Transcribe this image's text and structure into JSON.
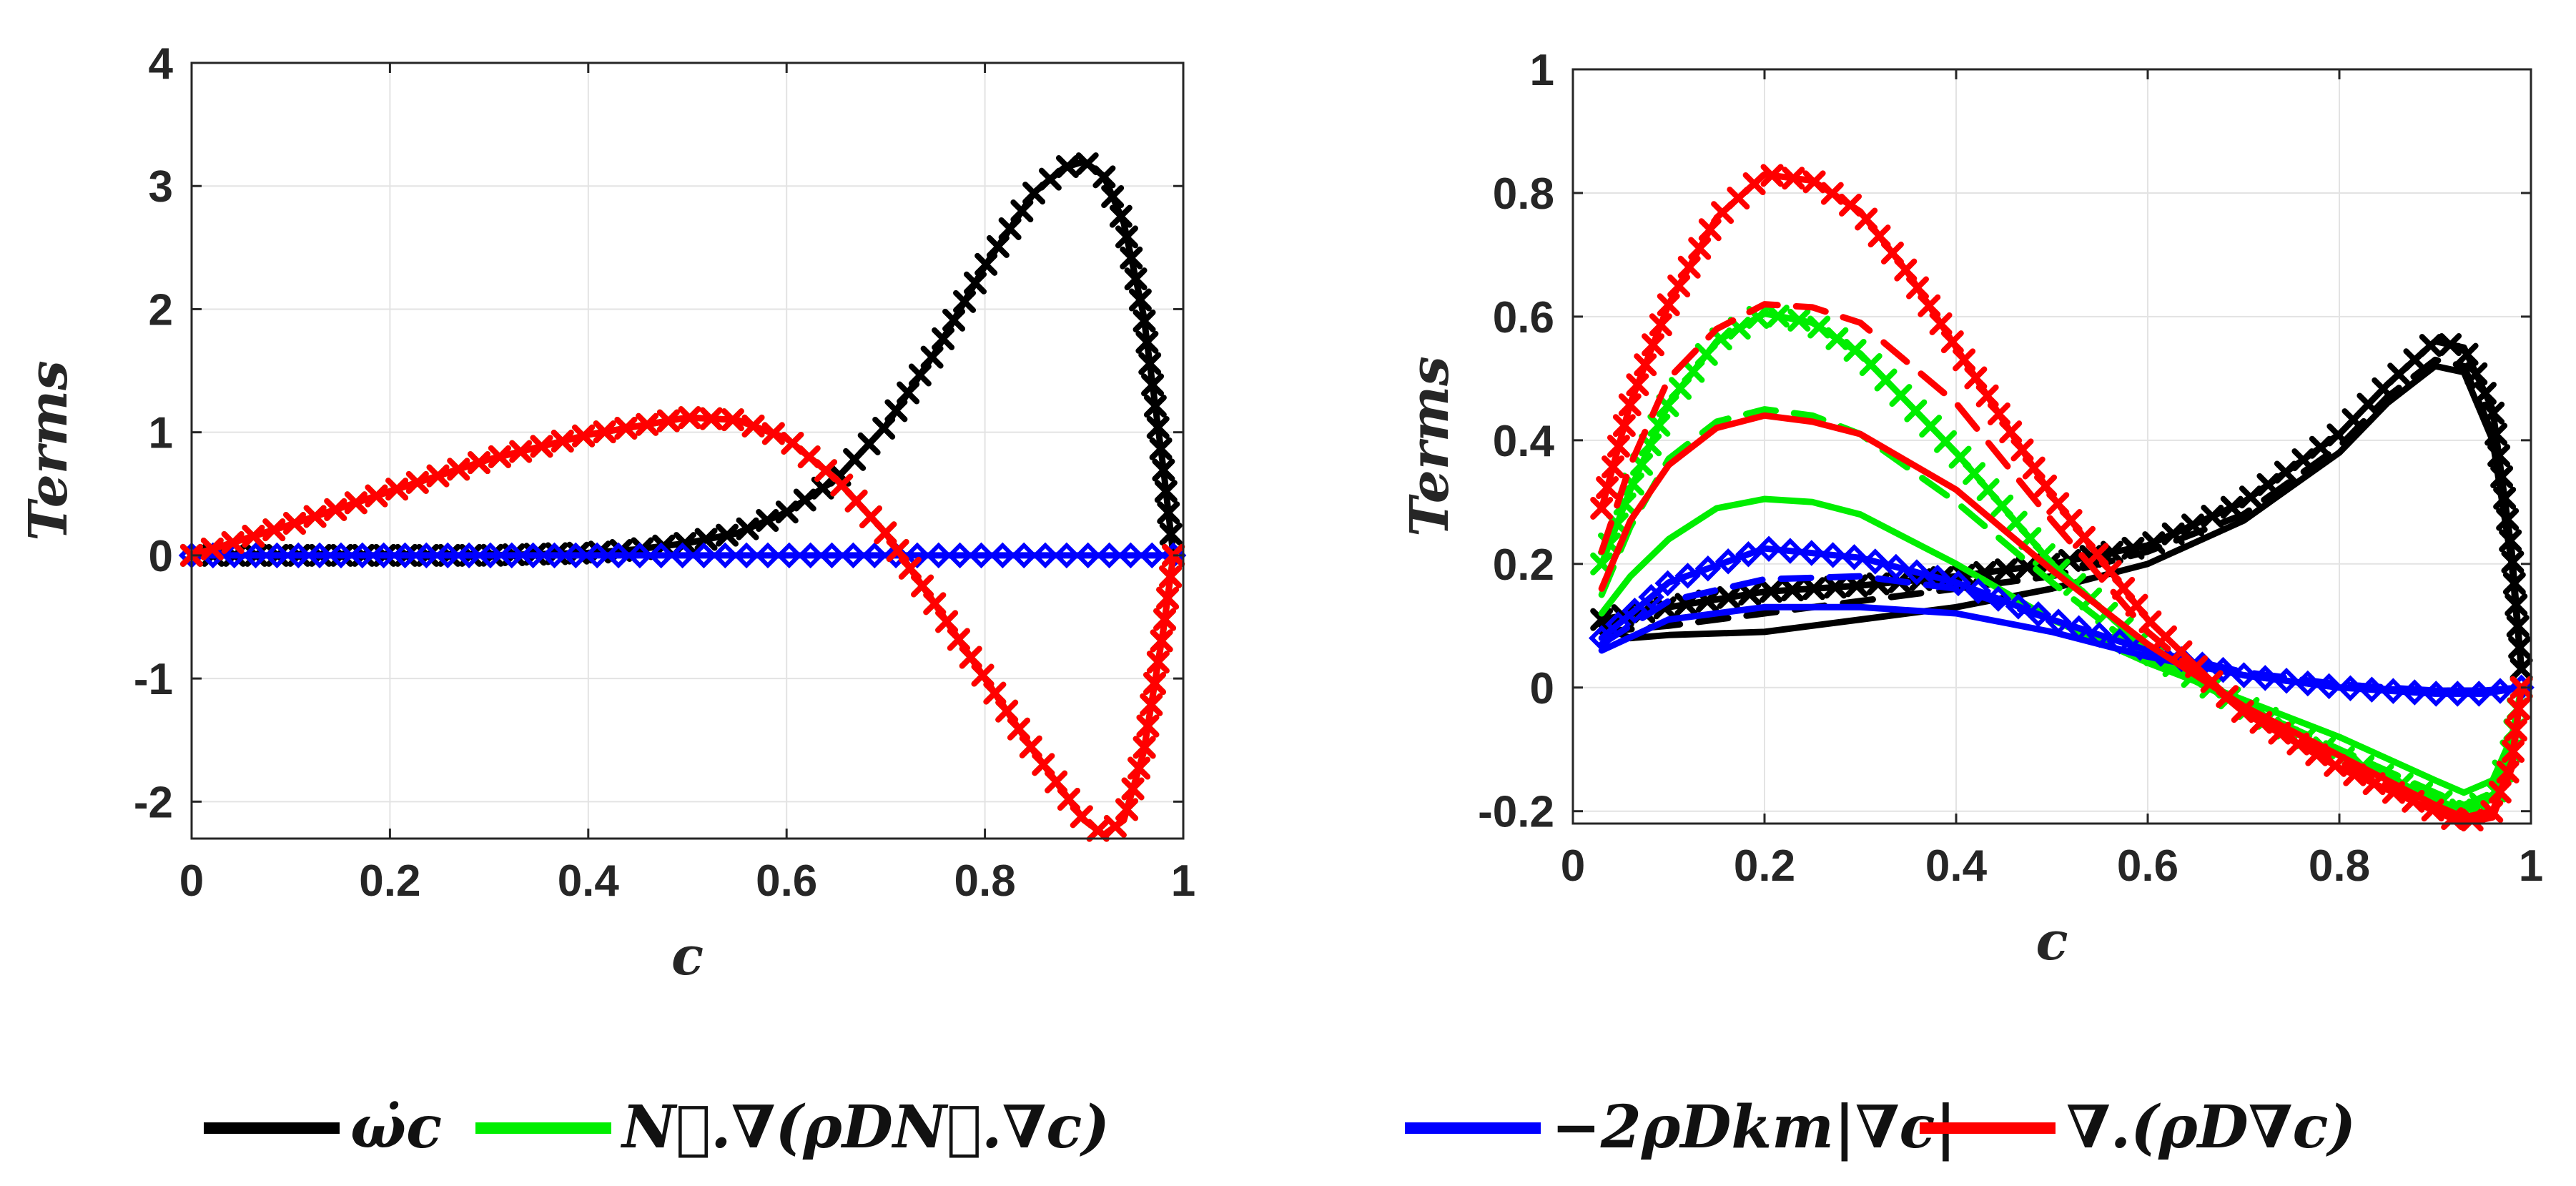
{
  "legend": [
    {
      "key": "black",
      "label": "ω̇c",
      "color": "#000000"
    },
    {
      "key": "green",
      "label": "N⃗.∇(ρDN⃗.∇c)",
      "color": "#00ee00"
    },
    {
      "key": "blue",
      "label": "−2ρDkm|∇c|",
      "color": "#0000ff"
    },
    {
      "key": "red",
      "label": "∇.(ρD∇c)",
      "color": "#ff0000"
    }
  ],
  "chart_data": [
    {
      "type": "line",
      "panel": "left",
      "xlabel": "c",
      "ylabel": "Terms",
      "xlim": [
        0,
        1
      ],
      "ylim": [
        -2.3,
        4
      ],
      "xticks": [
        0,
        0.2,
        0.4,
        0.6,
        0.8,
        1
      ],
      "xtick_labels": [
        "0",
        "0.2",
        "0.4",
        "0.6",
        "0.8",
        "1"
      ],
      "yticks": [
        -2,
        -1,
        0,
        1,
        2,
        3,
        4
      ],
      "ytick_labels": [
        "-2",
        "-1",
        "0",
        "1",
        "2",
        "3",
        "4"
      ],
      "grid": true,
      "series": [
        {
          "name": "ω̇c",
          "color": "#000000",
          "style": "solid",
          "marker": "x",
          "x": [
            0,
            0.1,
            0.2,
            0.3,
            0.4,
            0.45,
            0.5,
            0.55,
            0.6,
            0.65,
            0.7,
            0.75,
            0.8,
            0.85,
            0.88,
            0.9,
            0.92,
            0.94,
            0.96,
            0.98,
            0.99
          ],
          "y": [
            0,
            0,
            0,
            0,
            0.02,
            0.05,
            0.1,
            0.18,
            0.35,
            0.62,
            1.05,
            1.65,
            2.35,
            2.95,
            3.15,
            3.2,
            3.08,
            2.7,
            1.95,
            0.7,
            0
          ]
        },
        {
          "name": "N⃗.∇(ρDN⃗.∇c)",
          "color": "#00ee00",
          "style": "solid",
          "marker": "x",
          "x": [
            0,
            0.1,
            0.2,
            0.3,
            0.4,
            0.5,
            0.55,
            0.6,
            0.65,
            0.7,
            0.75,
            0.8,
            0.85,
            0.9,
            0.92,
            0.94,
            0.96,
            0.98,
            0.99
          ],
          "y": [
            0,
            0.25,
            0.52,
            0.78,
            0.98,
            1.12,
            1.1,
            0.95,
            0.62,
            0.18,
            -0.4,
            -1.0,
            -1.6,
            -2.15,
            -2.27,
            -2.15,
            -1.6,
            -0.6,
            0
          ]
        },
        {
          "name": "−2ρDkm|∇c|",
          "color": "#0000ff",
          "style": "solid",
          "marker": "diamond",
          "x": [
            0,
            0.2,
            0.4,
            0.6,
            0.8,
            0.99
          ],
          "y": [
            0,
            0,
            0,
            0,
            0,
            0
          ]
        },
        {
          "name": "∇.(ρD∇c)",
          "color": "#ff0000",
          "style": "solid",
          "marker": "x",
          "x": [
            0,
            0.1,
            0.2,
            0.3,
            0.4,
            0.5,
            0.55,
            0.6,
            0.65,
            0.7,
            0.75,
            0.8,
            0.85,
            0.9,
            0.92,
            0.94,
            0.96,
            0.98,
            0.99
          ],
          "y": [
            0,
            0.25,
            0.52,
            0.78,
            0.98,
            1.12,
            1.1,
            0.95,
            0.62,
            0.18,
            -0.4,
            -1.0,
            -1.6,
            -2.15,
            -2.27,
            -2.15,
            -1.6,
            -0.6,
            0
          ]
        }
      ]
    },
    {
      "type": "line",
      "panel": "right",
      "xlabel": "c",
      "ylabel": "Terms",
      "xlim": [
        0,
        1
      ],
      "ylim": [
        -0.22,
        1
      ],
      "xticks": [
        0,
        0.2,
        0.4,
        0.6,
        0.8,
        1
      ],
      "xtick_labels": [
        "0",
        "0.2",
        "0.4",
        "0.6",
        "0.8",
        "1"
      ],
      "yticks": [
        -0.2,
        0,
        0.2,
        0.4,
        0.6,
        0.8,
        1
      ],
      "ytick_labels": [
        "-0.2",
        "0",
        "0.2",
        "0.4",
        "0.6",
        "0.8",
        "1"
      ],
      "grid": true,
      "series": [
        {
          "name": "ω̇c (solid)",
          "color": "#000000",
          "style": "solid",
          "marker": "none",
          "x": [
            0.03,
            0.06,
            0.1,
            0.2,
            0.3,
            0.4,
            0.5,
            0.6,
            0.7,
            0.8,
            0.85,
            0.9,
            0.93,
            0.96,
            0.98,
            0.99
          ],
          "y": [
            0.1,
            0.08,
            0.085,
            0.09,
            0.11,
            0.13,
            0.16,
            0.2,
            0.27,
            0.38,
            0.46,
            0.52,
            0.51,
            0.4,
            0.2,
            0.03
          ]
        },
        {
          "name": "ω̇c (dashed)",
          "color": "#000000",
          "style": "dashed",
          "marker": "none",
          "x": [
            0.03,
            0.1,
            0.2,
            0.3,
            0.4,
            0.5,
            0.6,
            0.7,
            0.8,
            0.85,
            0.9,
            0.93,
            0.96,
            0.98,
            0.99
          ],
          "y": [
            0.09,
            0.1,
            0.12,
            0.14,
            0.16,
            0.18,
            0.22,
            0.28,
            0.39,
            0.47,
            0.53,
            0.52,
            0.41,
            0.2,
            0.03
          ]
        },
        {
          "name": "ω̇c (markers)",
          "color": "#000000",
          "style": "solid",
          "marker": "x",
          "x": [
            0.03,
            0.1,
            0.2,
            0.3,
            0.4,
            0.5,
            0.6,
            0.7,
            0.8,
            0.85,
            0.9,
            0.93,
            0.96,
            0.98,
            0.99
          ],
          "y": [
            0.11,
            0.13,
            0.155,
            0.165,
            0.18,
            0.2,
            0.23,
            0.3,
            0.41,
            0.49,
            0.56,
            0.55,
            0.45,
            0.22,
            0.03
          ]
        },
        {
          "name": "N⃗.∇(ρDN⃗.∇c) (solid)",
          "color": "#00ee00",
          "style": "solid",
          "marker": "none",
          "x": [
            0.03,
            0.06,
            0.1,
            0.15,
            0.2,
            0.25,
            0.3,
            0.4,
            0.5,
            0.6,
            0.7,
            0.8,
            0.9,
            0.93,
            0.96,
            0.98,
            0.99
          ],
          "y": [
            0.12,
            0.18,
            0.24,
            0.29,
            0.305,
            0.3,
            0.28,
            0.2,
            0.11,
            0.04,
            -0.02,
            -0.08,
            -0.15,
            -0.17,
            -0.15,
            -0.08,
            0
          ]
        },
        {
          "name": "N⃗.∇(ρDN⃗.∇c) (dashed)",
          "color": "#00ee00",
          "style": "dashed",
          "marker": "none",
          "x": [
            0.03,
            0.06,
            0.1,
            0.15,
            0.2,
            0.25,
            0.3,
            0.4,
            0.5,
            0.6,
            0.7,
            0.8,
            0.9,
            0.93,
            0.96,
            0.98,
            0.99
          ],
          "y": [
            0.15,
            0.26,
            0.37,
            0.43,
            0.45,
            0.44,
            0.41,
            0.3,
            0.17,
            0.05,
            -0.03,
            -0.1,
            -0.17,
            -0.19,
            -0.17,
            -0.09,
            0
          ]
        },
        {
          "name": "N⃗.∇(ρDN⃗.∇c) (markers)",
          "color": "#00ee00",
          "style": "solid",
          "marker": "x",
          "x": [
            0.03,
            0.06,
            0.1,
            0.15,
            0.2,
            0.25,
            0.3,
            0.4,
            0.5,
            0.6,
            0.7,
            0.8,
            0.9,
            0.93,
            0.96,
            0.98,
            0.99
          ],
          "y": [
            0.2,
            0.32,
            0.46,
            0.56,
            0.605,
            0.59,
            0.54,
            0.38,
            0.2,
            0.06,
            -0.03,
            -0.11,
            -0.18,
            -0.2,
            -0.18,
            -0.1,
            0
          ]
        },
        {
          "name": "−2ρDkm|∇c| (solid)",
          "color": "#0000ff",
          "style": "solid",
          "marker": "none",
          "x": [
            0.03,
            0.1,
            0.2,
            0.3,
            0.4,
            0.5,
            0.6,
            0.7,
            0.8,
            0.9,
            0.95,
            0.99
          ],
          "y": [
            0.06,
            0.11,
            0.13,
            0.13,
            0.12,
            0.09,
            0.05,
            0.02,
            0.0,
            -0.005,
            -0.005,
            0
          ]
        },
        {
          "name": "−2ρDkm|∇c| (dashed)",
          "color": "#0000ff",
          "style": "dashed",
          "marker": "none",
          "x": [
            0.03,
            0.1,
            0.2,
            0.3,
            0.4,
            0.5,
            0.6,
            0.7,
            0.8,
            0.9,
            0.95,
            0.99
          ],
          "y": [
            0.07,
            0.14,
            0.175,
            0.18,
            0.16,
            0.11,
            0.06,
            0.025,
            0.005,
            -0.005,
            -0.005,
            0
          ]
        },
        {
          "name": "−2ρDkm|∇c| (markers)",
          "color": "#0000ff",
          "style": "solid",
          "marker": "diamond",
          "x": [
            0.03,
            0.1,
            0.2,
            0.3,
            0.4,
            0.5,
            0.6,
            0.7,
            0.8,
            0.9,
            0.95,
            0.99
          ],
          "y": [
            0.08,
            0.17,
            0.225,
            0.21,
            0.17,
            0.11,
            0.06,
            0.02,
            0.0,
            -0.01,
            -0.01,
            0
          ]
        },
        {
          "name": "∇.(ρD∇c) (solid)",
          "color": "#ff0000",
          "style": "solid",
          "marker": "none",
          "x": [
            0.03,
            0.06,
            0.1,
            0.15,
            0.2,
            0.25,
            0.3,
            0.4,
            0.5,
            0.6,
            0.7,
            0.8,
            0.9,
            0.93,
            0.96,
            0.98,
            0.99
          ],
          "y": [
            0.16,
            0.27,
            0.36,
            0.42,
            0.44,
            0.43,
            0.41,
            0.32,
            0.19,
            0.07,
            -0.03,
            -0.11,
            -0.19,
            -0.21,
            -0.2,
            -0.12,
            0
          ]
        },
        {
          "name": "∇.(ρD∇c) (dashed)",
          "color": "#ff0000",
          "style": "dashed",
          "marker": "none",
          "x": [
            0.03,
            0.06,
            0.1,
            0.15,
            0.2,
            0.25,
            0.3,
            0.4,
            0.5,
            0.6,
            0.7,
            0.8,
            0.9,
            0.93,
            0.96,
            0.98,
            0.99
          ],
          "y": [
            0.22,
            0.36,
            0.5,
            0.58,
            0.62,
            0.615,
            0.59,
            0.46,
            0.27,
            0.09,
            -0.04,
            -0.12,
            -0.2,
            -0.22,
            -0.21,
            -0.13,
            0
          ]
        },
        {
          "name": "∇.(ρD∇c) (markers)",
          "color": "#ff0000",
          "style": "solid",
          "marker": "x",
          "x": [
            0.03,
            0.06,
            0.1,
            0.15,
            0.2,
            0.25,
            0.3,
            0.35,
            0.4,
            0.5,
            0.6,
            0.7,
            0.8,
            0.9,
            0.93,
            0.96,
            0.98,
            0.99
          ],
          "y": [
            0.29,
            0.46,
            0.62,
            0.76,
            0.83,
            0.82,
            0.77,
            0.67,
            0.55,
            0.31,
            0.11,
            -0.04,
            -0.13,
            -0.2,
            -0.22,
            -0.2,
            -0.12,
            0
          ]
        }
      ]
    }
  ]
}
